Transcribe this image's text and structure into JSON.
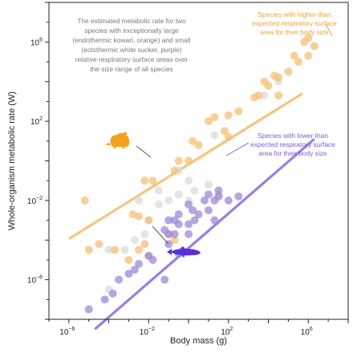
{
  "chart_data": {
    "type": "scatter",
    "xlabel": "Body mass (g)",
    "ylabel": "Whole-organism metabolic rate (W)",
    "x_scale": "log10",
    "y_scale": "log10",
    "xlim": [
      1e-07,
      100000000.0
    ],
    "ylim": [
      1e-08,
      100000000.0
    ],
    "x_ticks": [
      {
        "base": "10",
        "exp": "−6",
        "value": 1e-06
      },
      {
        "base": "10",
        "exp": "−2",
        "value": 0.01
      },
      {
        "base": "10",
        "exp": "2",
        "value": 100.0
      },
      {
        "base": "10",
        "exp": "6",
        "value": 1000000.0
      }
    ],
    "y_ticks": [
      {
        "base": "10",
        "exp": "−6",
        "value": 1e-06
      },
      {
        "base": "10",
        "exp": "−2",
        "value": 0.01
      },
      {
        "base": "10",
        "exp": "2",
        "value": 100.0
      },
      {
        "base": "10",
        "exp": "6",
        "value": 1000000.0
      }
    ],
    "grid": false,
    "colors": {
      "orange": "#f6c27a",
      "purple": "#9a85d8",
      "gray": "#d9d9d9",
      "line_orange": "#f7c47f",
      "line_purple": "#9b7fe0",
      "icon_orange": "#f4a21c",
      "icon_purple": "#5a2fd6",
      "note_gray": "#7a7a7a",
      "note_orange": "#e8a53d",
      "note_purple": "#7b5fd6"
    },
    "lines": [
      {
        "color": "orange",
        "x": [
          1e-06,
          500000
        ],
        "y": [
          0.000115,
          2500
        ]
      },
      {
        "color": "purple",
        "x": [
          2e-05,
          2000000
        ],
        "y": [
          3.16e-09,
          12.6
        ]
      }
    ],
    "series": [
      {
        "color": "orange",
        "points": [
          [
            630000.0,
            1000000.0
          ],
          [
            1000000.0,
            1600000.0
          ],
          [
            2000000.0,
            630000.0
          ],
          [
            1000000.0,
            200000.0
          ],
          [
            320000.0,
            100000.0
          ],
          [
            200000.0,
            200000.0
          ],
          [
            100000.0,
            32000.0
          ],
          [
            32000.0,
            16000.0
          ],
          [
            20000.0,
            20000.0
          ],
          [
            10000.0,
            6300.0
          ],
          [
            6300.0,
            10000.0
          ],
          [
            3200.0,
            2000.0
          ],
          [
            2000.0,
            1600.0
          ],
          [
            32000.0,
            2000.0
          ],
          [
            320.0,
            320.0
          ],
          [
            100.0,
            200.0
          ],
          [
            20.0,
            160.0
          ],
          [
            10.0,
            100.0
          ],
          [
            100.0,
            16.0
          ],
          [
            63.0,
            32.0
          ],
          [
            3.2,
            6.3
          ],
          [
            1.6,
            10.0
          ],
          [
            1.0,
            1.0
          ],
          [
            0.32,
            1.0
          ],
          [
            0.2,
            0.32
          ],
          [
            0.016,
            0.1
          ],
          [
            0.0063,
            0.1
          ],
          [
            6.3e-06,
            0.01
          ],
          [
            0.0032,
            0.0016
          ],
          [
            0.0016,
            0.002
          ],
          [
            0.01,
            0.001
          ],
          [
            0.1,
            0.0002
          ],
          [
            0.2,
            0.0001
          ],
          [
            0.0002,
            3.2e-05
          ],
          [
            0.0032,
            3.2e-05
          ],
          [
            0.001,
            1e-05
          ],
          [
            0.01,
            1.6e-05
          ],
          [
            1e-05,
            3.2e-05
          ],
          [
            3.2e-05,
            6.3e-05
          ],
          [
            0.0063,
            6.3e-05
          ]
        ]
      },
      {
        "color": "purple",
        "points": [
          [
            1e-05,
            3.2e-08
          ],
          [
            6.3e-05,
            1e-07
          ],
          [
            0.00016,
            2e-07
          ],
          [
            0.00032,
            1e-06
          ],
          [
            0.001,
            2e-06
          ],
          [
            0.002,
            3.2e-06
          ],
          [
            0.0032,
            6.3e-06
          ],
          [
            0.01,
            1.6e-05
          ],
          [
            0.016,
            1e-05
          ],
          [
            0.063,
            0.00032
          ],
          [
            0.1,
            0.001
          ],
          [
            0.2,
            0.0002
          ],
          [
            0.32,
            0.00063
          ],
          [
            0.2,
            0.001
          ],
          [
            1.0,
            0.00063
          ],
          [
            2.0,
            0.001
          ],
          [
            3.2,
            0.002
          ],
          [
            1.0,
            0.0063
          ],
          [
            6.3,
            0.01
          ],
          [
            10.0,
            0.02
          ],
          [
            32.0,
            0.016
          ],
          [
            10.0,
            0.0032
          ],
          [
            320.0,
            0.016
          ],
          [
            100.0,
            0.01
          ],
          [
            20.0,
            0.01
          ],
          [
            32.0,
            0.032
          ],
          [
            1.6,
            0.0032
          ],
          [
            0.063,
            1e-06
          ],
          [
            0.1,
            6.3e-05
          ],
          [
            0.32,
            2e-05
          ],
          [
            0.32,
            0.002
          ],
          [
            1.0,
            0.0002
          ],
          [
            0.1,
            0.0002
          ],
          [
            20.0,
            0.001
          ]
        ]
      },
      {
        "color": "gray",
        "points": [
          [
            0.0001,
            3.2e-07
          ],
          [
            0.0001,
            3.2e-05
          ],
          [
            0.00063,
            3.2e-05
          ],
          [
            0.002,
            0.0001
          ],
          [
            0.01,
            0.001
          ],
          [
            0.0063,
            0.0002
          ],
          [
            0.032,
            0.0063
          ],
          [
            0.1,
            0.01
          ],
          [
            0.32,
            0.02
          ],
          [
            1.0,
            0.01
          ],
          [
            2.0,
            0.032
          ],
          [
            10.0,
            0.063
          ],
          [
            32.0,
            0.02
          ],
          [
            32000.0,
            10000.0
          ],
          [
            6300.0,
            2000.0
          ],
          [
            20.0,
            20.0
          ],
          [
            0.32,
            0.32
          ],
          [
            1.0,
            0.1
          ],
          [
            0.032,
            0.032
          ],
          [
            0.0032,
            0.01
          ]
        ]
      }
    ],
    "annotations": [
      {
        "id": "note_top_left",
        "color": "note_gray",
        "lines": [
          "The estimated metabolic rate for two",
          "species with exceptionally large",
          "(endothermic kowari, orange) and small",
          "(ectothermic white sucker, purple)",
          "relative respiratory surface areas over",
          "the size range of all species"
        ]
      },
      {
        "id": "note_orange",
        "color": "note_orange",
        "lines": [
          "Species with higher than",
          "expected respiratory surface",
          "area for their body size"
        ]
      },
      {
        "id": "note_purple",
        "color": "note_purple",
        "lines": [
          "Species with lower than",
          "expected respiratory surface",
          "area for their body size"
        ]
      }
    ],
    "icons": [
      "kowari-icon",
      "white-sucker-fish-icon"
    ]
  }
}
